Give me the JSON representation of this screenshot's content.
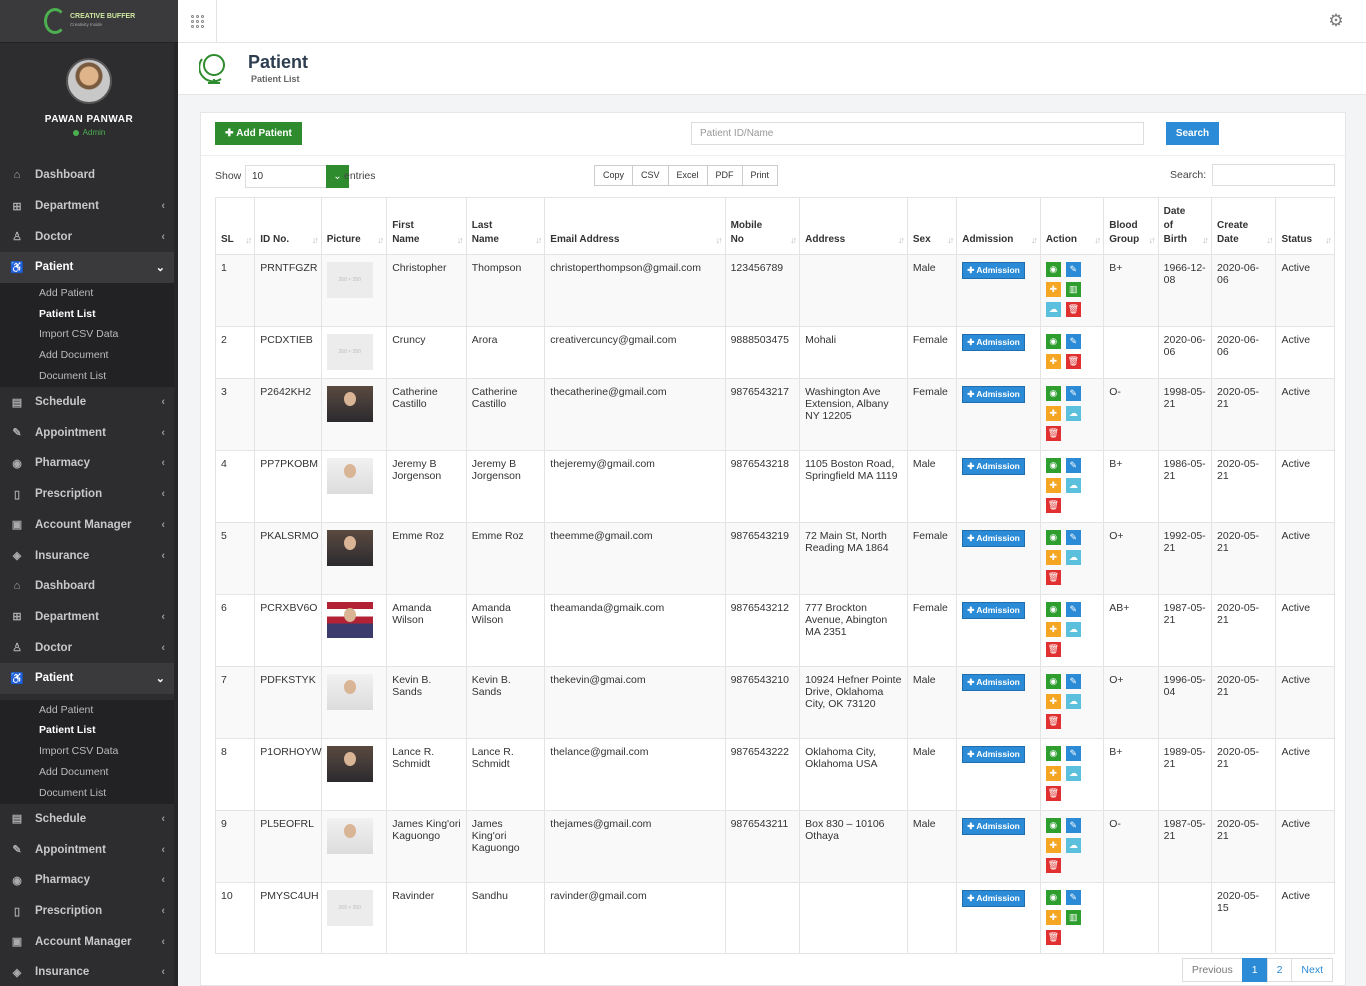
{
  "brand": {
    "name": "CREATIVE BUFFER",
    "tagline": "Creativity Inside"
  },
  "user": {
    "name": "PAWAN PANWAR",
    "role": "Admin"
  },
  "sidebar": {
    "groups": [
      {
        "items": [
          {
            "label": "Dashboard",
            "icon": "home-icon",
            "chevron": ""
          },
          {
            "label": "Department",
            "icon": "sitemap-icon",
            "chevron": "‹"
          },
          {
            "label": "Doctor",
            "icon": "doctor-icon",
            "chevron": "‹"
          },
          {
            "label": "Patient",
            "icon": "wheelchair-icon",
            "chevron": "⌄",
            "active": true
          },
          {
            "label": "Schedule",
            "icon": "calendar-icon",
            "chevron": "‹"
          },
          {
            "label": "Appointment",
            "icon": "edit-icon",
            "chevron": "‹"
          },
          {
            "label": "Pharmacy",
            "icon": "pill-icon",
            "chevron": "‹"
          },
          {
            "label": "Prescription",
            "icon": "book-icon",
            "chevron": "‹"
          },
          {
            "label": "Account Manager",
            "icon": "briefcase-icon",
            "chevron": "‹"
          },
          {
            "label": "Insurance",
            "icon": "shield-icon",
            "chevron": "‹"
          }
        ],
        "submenu": [
          "Add Patient",
          "Patient List",
          "Import CSV Data",
          "Add Document",
          "Document List"
        ]
      }
    ]
  },
  "page": {
    "title": "Patient",
    "subtitle": "Patient List"
  },
  "toolbar": {
    "add_label": "Add Patient",
    "search_placeholder": "Patient ID/Name",
    "search_label": "Search"
  },
  "table_controls": {
    "show": "Show",
    "entries_value": "10",
    "entries": "entries",
    "search": "Search:",
    "export": [
      "Copy",
      "CSV",
      "Excel",
      "PDF",
      "Print"
    ]
  },
  "columns": [
    {
      "l1": "",
      "l2": "SL"
    },
    {
      "l1": "",
      "l2": "ID No."
    },
    {
      "l1": "",
      "l2": "Picture"
    },
    {
      "l1": "First",
      "l2": "Name"
    },
    {
      "l1": "Last",
      "l2": "Name"
    },
    {
      "l1": "",
      "l2": "Email Address"
    },
    {
      "l1": "Mobile",
      "l2": "No"
    },
    {
      "l1": "",
      "l2": "Address"
    },
    {
      "l1": "",
      "l2": "Sex"
    },
    {
      "l1": "",
      "l2": "Admission"
    },
    {
      "l1": "",
      "l2": "Action"
    },
    {
      "l1": "Blood",
      "l2": "Group"
    },
    {
      "l1": "Date of",
      "l2": "Birth"
    },
    {
      "l1": "Create",
      "l2": "Date"
    },
    {
      "l1": "",
      "l2": "Status"
    }
  ],
  "admission_label": "Admission",
  "placeholder_text": "260 × 350",
  "rows": [
    {
      "sl": "1",
      "id": "PRNTFGZR",
      "pic": "ph",
      "first": "Christopher",
      "last": "Thompson",
      "email": "christoperthompson@gmail.com",
      "mobile": "123456789",
      "address": "",
      "sex": "Male",
      "actions": [
        "view",
        "edit",
        "add",
        "book",
        "upload",
        "del"
      ],
      "blood": "B+",
      "dob": "1966-12-08",
      "created": "2020-06-06",
      "status": "Active",
      "h": "h72"
    },
    {
      "sl": "2",
      "id": "PCDXTIEB",
      "pic": "ph",
      "first": "Cruncy",
      "last": "Arora",
      "email": "creativercuncy@gmail.com",
      "mobile": "9888503475",
      "address": "Mohali",
      "sex": "Female",
      "actions": [
        "view",
        "edit",
        "add",
        "del"
      ],
      "blood": "",
      "dob": "2020-06-06",
      "created": "2020-06-06",
      "status": "Active",
      "h": "h52"
    },
    {
      "sl": "3",
      "id": "P2642KH2",
      "pic": "photo",
      "first": "Catherine Castillo",
      "last": "Catherine Castillo",
      "email": "thecatherine@gmail.com",
      "mobile": "9876543217",
      "address": "Washington Ave Extension, Albany NY 12205",
      "sex": "Female",
      "actions": [
        "view",
        "edit",
        "add",
        "upload",
        "del"
      ],
      "blood": "O-",
      "dob": "1998-05-21",
      "created": "2020-05-21",
      "status": "Active",
      "h": "h72"
    },
    {
      "sl": "4",
      "id": "PP7PKOBM",
      "pic": "photo light",
      "first": "Jeremy B Jorgenson",
      "last": "Jeremy B Jorgenson",
      "email": "thejeremy@gmail.com",
      "mobile": "9876543218",
      "address": "1105 Boston Road, Springfield MA 1119",
      "sex": "Male",
      "actions": [
        "view",
        "edit",
        "add",
        "upload",
        "del"
      ],
      "blood": "B+",
      "dob": "1986-05-21",
      "created": "2020-05-21",
      "status": "Active",
      "h": "h72"
    },
    {
      "sl": "5",
      "id": "PKALSRMO",
      "pic": "photo",
      "first": "Emme Roz",
      "last": "Emme Roz",
      "email": "theemme@gmail.com",
      "mobile": "9876543219",
      "address": "72 Main St, North Reading MA 1864",
      "sex": "Female",
      "actions": [
        "view",
        "edit",
        "add",
        "upload",
        "del"
      ],
      "blood": "O+",
      "dob": "1992-05-21",
      "created": "2020-05-21",
      "status": "Active",
      "h": "h72"
    },
    {
      "sl": "6",
      "id": "PCRXBV6O",
      "pic": "photo flag",
      "first": "Amanda Wilson",
      "last": "Amanda Wilson",
      "email": "theamanda@gmaik.com",
      "mobile": "9876543212",
      "address": "777 Brockton Avenue, Abington MA 2351",
      "sex": "Female",
      "actions": [
        "view",
        "edit",
        "add",
        "upload",
        "del"
      ],
      "blood": "AB+",
      "dob": "1987-05-21",
      "created": "2020-05-21",
      "status": "Active",
      "h": "h72"
    },
    {
      "sl": "7",
      "id": "PDFKSTYK",
      "pic": "photo light",
      "first": "Kevin B. Sands",
      "last": "Kevin B. Sands",
      "email": "thekevin@gmai.com",
      "mobile": "9876543210",
      "address": "10924 Hefner Pointe Drive, Oklahoma City, OK 73120",
      "sex": "Male",
      "actions": [
        "view",
        "edit",
        "add",
        "upload",
        "del"
      ],
      "blood": "O+",
      "dob": "1996-05-04",
      "created": "2020-05-21",
      "status": "Active",
      "h": "h72"
    },
    {
      "sl": "8",
      "id": "P1ORHOYW",
      "pic": "photo",
      "first": "Lance R. Schmidt",
      "last": "Lance R. Schmidt",
      "email": "thelance@gmail.com",
      "mobile": "9876543222",
      "address": "Oklahoma City, Oklahoma USA",
      "sex": "Male",
      "actions": [
        "view",
        "edit",
        "add",
        "upload",
        "del"
      ],
      "blood": "B+",
      "dob": "1989-05-21",
      "created": "2020-05-21",
      "status": "Active",
      "h": "h72"
    },
    {
      "sl": "9",
      "id": "PL5EOFRL",
      "pic": "photo light",
      "first": "James King'ori Kaguongo",
      "last": "James King'ori Kaguongo",
      "email": "thejames@gmail.com",
      "mobile": "9876543211",
      "address": "Box 830 – 10106 Othaya",
      "sex": "Male",
      "actions": [
        "view",
        "edit",
        "add",
        "upload",
        "del"
      ],
      "blood": "O-",
      "dob": "1987-05-21",
      "created": "2020-05-21",
      "status": "Active",
      "h": "h72"
    },
    {
      "sl": "10",
      "id": "PMYSC4UH",
      "pic": "ph",
      "first": "Ravinder",
      "last": "Sandhu",
      "email": "ravinder@gmail.com",
      "mobile": "",
      "address": "",
      "sex": "",
      "actions": [
        "view",
        "edit",
        "add",
        "book",
        "del"
      ],
      "blood": "",
      "dob": "",
      "created": "2020-05-15",
      "status": "Active",
      "h": "h71"
    }
  ],
  "pagination": {
    "previous": "Previous",
    "pages": [
      "1",
      "2"
    ],
    "current": "1",
    "next": "Next"
  },
  "colors": {
    "green": "#2e8b2e",
    "blue": "#2b8bd6",
    "sidebar": "#2d2d30"
  }
}
